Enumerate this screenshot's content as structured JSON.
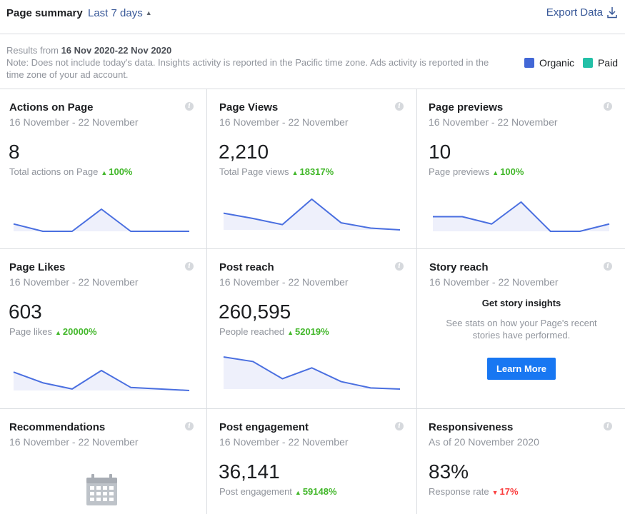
{
  "header": {
    "title": "Page summary",
    "range_label": "Last 7 days",
    "export_label": "Export Data"
  },
  "notes": {
    "results_prefix": "Results from ",
    "results_range": "16 Nov 2020-22 Nov 2020",
    "note": "Note: Does not include today's data. Insights activity is reported in the Pacific time zone. Ads activity is reported in the time zone of your ad account."
  },
  "legend": [
    {
      "label": "Organic",
      "color": "#4267d6"
    },
    {
      "label": "Paid",
      "color": "#23c0a7"
    }
  ],
  "colors": {
    "line": "#4a6fe0",
    "fill": "#eef0fb",
    "up": "#42b72a",
    "down": "#fa3e3e",
    "accent": "#1877f2"
  },
  "cards": [
    {
      "title": "Actions on Page",
      "subtitle": "16 November - 22 November",
      "value": "8",
      "metric_label": "Total actions on Page",
      "change": "100%",
      "direction": "up",
      "spark": [
        1,
        0,
        0,
        3,
        0,
        0,
        0
      ]
    },
    {
      "title": "Page Views",
      "subtitle": "16 November - 22 November",
      "value": "2,210",
      "metric_label": "Total Page views",
      "change": "18317%",
      "direction": "up",
      "spark": [
        280,
        220,
        150,
        440,
        170,
        110,
        90
      ]
    },
    {
      "title": "Page previews",
      "subtitle": "16 November - 22 November",
      "value": "10",
      "metric_label": "Page previews",
      "change": "100%",
      "direction": "up",
      "spark": [
        2,
        2,
        1,
        4,
        0,
        0,
        1
      ]
    },
    {
      "title": "Page Likes",
      "subtitle": "16 November - 22 November",
      "value": "603",
      "metric_label": "Page likes",
      "change": "20000%",
      "direction": "up",
      "spark": [
        120,
        50,
        10,
        130,
        20,
        10,
        0
      ]
    },
    {
      "title": "Post reach",
      "subtitle": "16 November - 22 November",
      "value": "260,595",
      "metric_label": "People reached",
      "change": "52019%",
      "direction": "up",
      "spark": [
        60000,
        52000,
        22000,
        41000,
        17000,
        6000,
        4000
      ]
    },
    {
      "title": "Story reach",
      "subtitle": "16 November - 22 November",
      "story_title": "Get story insights",
      "story_text": "See stats on how your Page's recent stories have performed.",
      "button_label": "Learn More"
    },
    {
      "title": "Recommendations",
      "subtitle": "16 November - 22 November"
    },
    {
      "title": "Post engagement",
      "subtitle": "16 November - 22 November",
      "value": "36,141",
      "metric_label": "Post engagement",
      "change": "59148%",
      "direction": "up"
    },
    {
      "title": "Responsiveness",
      "subtitle": "As of 20 November 2020",
      "value": "83%",
      "metric_label": "Response rate",
      "change": "17%",
      "direction": "down"
    }
  ]
}
